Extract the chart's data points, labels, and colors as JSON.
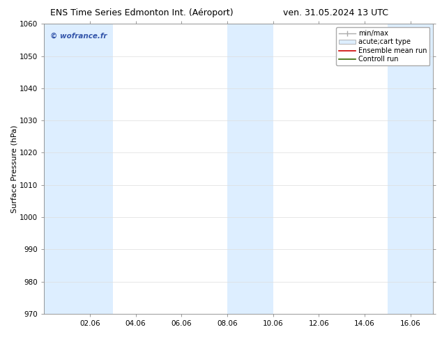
{
  "title_left": "ENS Time Series Edmonton Int. (Aéroport)",
  "title_right": "ven. 31.05.2024 13 UTC",
  "ylabel": "Surface Pressure (hPa)",
  "ylim": [
    970,
    1060
  ],
  "yticks": [
    970,
    980,
    990,
    1000,
    1010,
    1020,
    1030,
    1040,
    1050,
    1060
  ],
  "xtick_labels": [
    "02.06",
    "04.06",
    "06.06",
    "08.06",
    "10.06",
    "12.06",
    "14.06",
    "16.06"
  ],
  "xtick_positions": [
    2,
    4,
    6,
    8,
    10,
    12,
    14,
    16
  ],
  "xlim": [
    0,
    17
  ],
  "watermark": "© wofrance.fr",
  "watermark_color": "#3355aa",
  "bg_color": "#ffffff",
  "plot_bg_color": "#ffffff",
  "shaded_bands": [
    {
      "x_start": 0.0,
      "x_end": 2.0,
      "color": "#ddeeff"
    },
    {
      "x_start": 2.0,
      "x_end": 3.0,
      "color": "#ddeeff"
    },
    {
      "x_start": 8.0,
      "x_end": 9.0,
      "color": "#ddeeff"
    },
    {
      "x_start": 9.0,
      "x_end": 10.0,
      "color": "#ddeeff"
    },
    {
      "x_start": 15.0,
      "x_end": 17.0,
      "color": "#ddeeff"
    }
  ],
  "legend_entries": [
    {
      "label": "min/max",
      "color": "#aaaaaa",
      "type": "errorbar"
    },
    {
      "label": "acute;cart type",
      "color": "#aaaaaa",
      "type": "box"
    },
    {
      "label": "Ensemble mean run",
      "color": "#cc0000",
      "type": "line"
    },
    {
      "label": "Controll run",
      "color": "#336600",
      "type": "line"
    }
  ],
  "title_fontsize": 9,
  "tick_fontsize": 7.5,
  "ylabel_fontsize": 8,
  "legend_fontsize": 7,
  "grid_color": "#dddddd",
  "spine_color": "#888888",
  "tick_color": "#888888"
}
